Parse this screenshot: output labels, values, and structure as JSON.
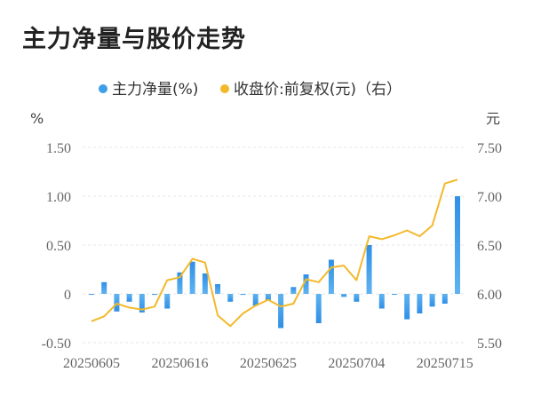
{
  "chart_data": {
    "type": "bar+line",
    "title": "主力净量与股价走势",
    "legend": [
      {
        "name": "主力净量(%)",
        "color": "#3d9fe8"
      },
      {
        "name": "收盘价:前复权(元)（右）",
        "color": "#f2b92b"
      }
    ],
    "left_unit": "%",
    "right_unit": "元",
    "left_ticks": [
      "1.50",
      "1.00",
      "0.50",
      "0",
      "-0.50"
    ],
    "right_ticks": [
      "7.50",
      "7.00",
      "6.50",
      "6.00",
      "5.50"
    ],
    "ylim_left": [
      -0.5,
      1.5
    ],
    "ylim_right": [
      5.5,
      7.5
    ],
    "x_tick_labels": [
      {
        "label": "20250605",
        "index": 0
      },
      {
        "label": "20250616",
        "index": 7
      },
      {
        "label": "20250625",
        "index": 14
      },
      {
        "label": "20250704",
        "index": 21
      },
      {
        "label": "20250715",
        "index": 28
      }
    ],
    "bar_series": {
      "name": "主力净量(%)",
      "values": [
        0.0,
        0.12,
        -0.18,
        -0.08,
        -0.19,
        -0.01,
        -0.15,
        0.22,
        0.33,
        0.21,
        0.1,
        -0.08,
        -0.01,
        -0.12,
        -0.07,
        -0.35,
        0.07,
        0.2,
        -0.3,
        0.35,
        -0.03,
        -0.08,
        0.5,
        -0.15,
        0.0,
        -0.26,
        -0.2,
        -0.13,
        -0.1,
        1.0
      ]
    },
    "line_series": {
      "name": "收盘价:前复权(元)（右）",
      "values": [
        5.72,
        5.77,
        5.9,
        5.86,
        5.84,
        5.87,
        6.14,
        6.17,
        6.36,
        6.32,
        5.78,
        5.67,
        5.8,
        5.88,
        5.94,
        5.87,
        5.9,
        6.15,
        6.12,
        6.27,
        6.29,
        6.14,
        6.59,
        6.56,
        6.6,
        6.65,
        6.59,
        6.7,
        7.13,
        7.17
      ]
    }
  }
}
